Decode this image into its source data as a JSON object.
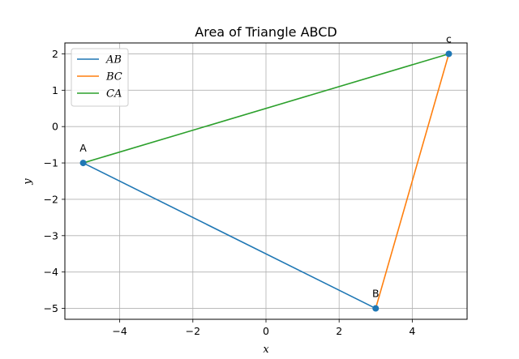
{
  "chart_data": {
    "type": "line",
    "title": "Area of Triangle ABCD",
    "xlabel": "x",
    "ylabel": "y",
    "xlim": [
      -5.5,
      5.5
    ],
    "ylim": [
      -5.3,
      2.3
    ],
    "xticks": [
      -4,
      -2,
      0,
      2,
      4
    ],
    "yticks": [
      2,
      1,
      0,
      -1,
      -2,
      -3,
      -4,
      -5
    ],
    "grid": true,
    "legend_position": "top-left",
    "series": [
      {
        "name": "AB",
        "color": "#1f77b4",
        "points": [
          [
            -5,
            -1
          ],
          [
            3,
            -5
          ]
        ]
      },
      {
        "name": "BC",
        "color": "#ff7f0e",
        "points": [
          [
            3,
            -5
          ],
          [
            5,
            2
          ]
        ]
      },
      {
        "name": "CA",
        "color": "#2ca02c",
        "points": [
          [
            5,
            2
          ],
          [
            -5,
            -1
          ]
        ]
      }
    ],
    "markers": {
      "color": "#1f77b4",
      "points": [
        [
          -5,
          -1
        ],
        [
          3,
          -5
        ],
        [
          5,
          2
        ]
      ]
    },
    "point_labels": [
      {
        "text": "A",
        "x": -5,
        "y": -1
      },
      {
        "text": "B",
        "x": 3,
        "y": -5
      },
      {
        "text": "c",
        "x": 5,
        "y": 2
      }
    ]
  }
}
